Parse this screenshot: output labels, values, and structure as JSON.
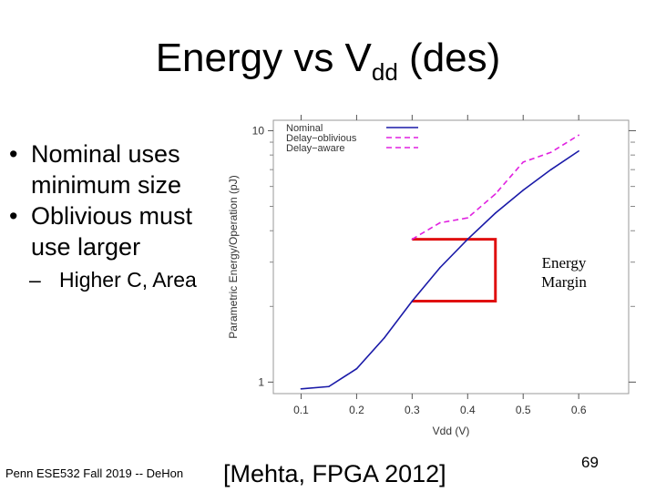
{
  "slide": {
    "title_main": "Energy vs V",
    "title_sub": "dd",
    "title_tail": " (des)",
    "bullets": [
      {
        "text": "Nominal uses minimum size"
      },
      {
        "text": "Oblivious must use larger"
      }
    ],
    "sub_bullet": "Higher C, Area",
    "footer": "Penn ESE532 Fall 2019 -- DeHon",
    "citation": "[Mehta,  FPGA 2012]",
    "page_number": "69",
    "annotation": "Energy Margin"
  },
  "chart_data": {
    "type": "line",
    "xlabel": "Vdd (V)",
    "ylabel": "Parametric Energy/Operation (pJ)",
    "xlim": [
      0.05,
      0.69
    ],
    "ylim": [
      0.9,
      11
    ],
    "yscale": "log",
    "x_ticks": [
      "0.1",
      "0.2",
      "0.3",
      "0.4",
      "0.5",
      "0.6"
    ],
    "y_ticks": [
      "1",
      "10"
    ],
    "legend_position": "top-left",
    "series": [
      {
        "name": "Nominal",
        "color": "#1a1aa8",
        "dash": "solid",
        "x": [
          0.1,
          0.15,
          0.2,
          0.25,
          0.3,
          0.35,
          0.4,
          0.45,
          0.5,
          0.55,
          0.6
        ],
        "y": [
          0.94,
          0.96,
          1.13,
          1.5,
          2.1,
          2.85,
          3.7,
          4.7,
          5.8,
          7.0,
          8.3
        ]
      },
      {
        "name": "Delay−oblivious",
        "color": "#e020e0",
        "dash": "dashed",
        "x": [
          0.3,
          0.35,
          0.4,
          0.45,
          0.5,
          0.55,
          0.6
        ],
        "y": [
          3.7,
          4.3,
          4.5,
          5.6,
          7.5,
          8.2,
          9.6
        ]
      },
      {
        "name": "Delay−aware",
        "color": "#e020e0",
        "dash": "dashed",
        "x": [],
        "y": []
      }
    ],
    "margin_bracket": {
      "x_start": 0.3,
      "x_end": 0.45,
      "y_top": 3.7,
      "y_bottom": 2.1,
      "color": "#e01010"
    }
  }
}
